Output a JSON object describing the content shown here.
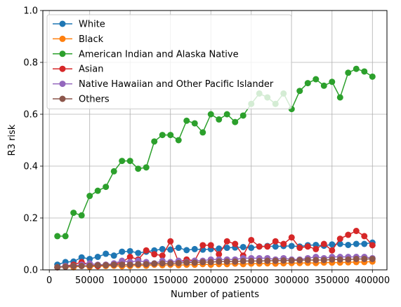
{
  "chart_data": {
    "type": "line",
    "title": "",
    "xlabel": "Number of patients",
    "ylabel": "R3 risk",
    "xlim": [
      -8000,
      418000
    ],
    "ylim": [
      0,
      1.0
    ],
    "xticks": [
      0,
      50000,
      100000,
      150000,
      200000,
      250000,
      300000,
      350000,
      400000
    ],
    "xtick_labels": [
      "0",
      "50000",
      "100000",
      "150000",
      "200000",
      "250000",
      "300000",
      "350000",
      "400000"
    ],
    "yticks": [
      0.0,
      0.2,
      0.4,
      0.6,
      0.8,
      1.0
    ],
    "ytick_labels": [
      "0.0",
      "0.2",
      "0.4",
      "0.6",
      "0.8",
      "1.0"
    ],
    "grid": true,
    "legend_position": "top-left",
    "x": [
      10000,
      20000,
      30000,
      40000,
      50000,
      60000,
      70000,
      80000,
      90000,
      100000,
      110000,
      120000,
      130000,
      140000,
      150000,
      160000,
      170000,
      180000,
      190000,
      200000,
      210000,
      220000,
      230000,
      240000,
      250000,
      260000,
      270000,
      280000,
      290000,
      300000,
      310000,
      320000,
      330000,
      340000,
      350000,
      360000,
      370000,
      380000,
      390000,
      400000
    ],
    "series": [
      {
        "name": "White",
        "color": "#1f77b4",
        "values": [
          0.02,
          0.03,
          0.032,
          0.048,
          0.042,
          0.05,
          0.062,
          0.055,
          0.07,
          0.072,
          0.065,
          0.07,
          0.075,
          0.08,
          0.078,
          0.085,
          0.076,
          0.08,
          0.078,
          0.08,
          0.082,
          0.085,
          0.086,
          0.088,
          0.085,
          0.09,
          0.092,
          0.09,
          0.092,
          0.092,
          0.09,
          0.095,
          0.096,
          0.093,
          0.098,
          0.1,
          0.096,
          0.1,
          0.1,
          0.105
        ]
      },
      {
        "name": "Black",
        "color": "#ff7f0e",
        "values": [
          0.01,
          0.012,
          0.01,
          0.015,
          0.012,
          0.014,
          0.015,
          0.016,
          0.014,
          0.015,
          0.018,
          0.016,
          0.02,
          0.018,
          0.02,
          0.018,
          0.02,
          0.02,
          0.022,
          0.02,
          0.022,
          0.022,
          0.024,
          0.022,
          0.024,
          0.024,
          0.025,
          0.024,
          0.025,
          0.026,
          0.026,
          0.027,
          0.026,
          0.028,
          0.028,
          0.028,
          0.029,
          0.03,
          0.03,
          0.032
        ]
      },
      {
        "name": "American Indian and Alaska Native",
        "color": "#2ca02c",
        "values": [
          0.13,
          0.13,
          0.22,
          0.21,
          0.285,
          0.305,
          0.32,
          0.38,
          0.42,
          0.42,
          0.39,
          0.395,
          0.495,
          0.52,
          0.52,
          0.5,
          0.575,
          0.565,
          0.53,
          0.6,
          0.58,
          0.6,
          0.57,
          0.595,
          0.64,
          0.68,
          0.665,
          0.64,
          0.68,
          0.62,
          0.69,
          0.72,
          0.735,
          0.71,
          0.725,
          0.665,
          0.76,
          0.775,
          0.765,
          0.745
        ]
      },
      {
        "name": "Asian",
        "color": "#d62728",
        "values": [
          0.01,
          0.015,
          0.02,
          0.03,
          0.02,
          0.015,
          0.02,
          0.02,
          0.03,
          0.05,
          0.04,
          0.075,
          0.06,
          0.055,
          0.11,
          0.03,
          0.04,
          0.035,
          0.095,
          0.095,
          0.06,
          0.11,
          0.1,
          0.055,
          0.115,
          0.09,
          0.09,
          0.11,
          0.1,
          0.125,
          0.085,
          0.09,
          0.08,
          0.1,
          0.075,
          0.12,
          0.135,
          0.15,
          0.13,
          0.095
        ]
      },
      {
        "name": "Native Hawaiian and Other Pacific Islander",
        "color": "#9467bd",
        "values": [
          0.01,
          0.015,
          0.015,
          0.02,
          0.025,
          0.02,
          0.02,
          0.025,
          0.035,
          0.03,
          0.035,
          0.03,
          0.025,
          0.035,
          0.03,
          0.035,
          0.03,
          0.035,
          0.035,
          0.04,
          0.04,
          0.04,
          0.04,
          0.045,
          0.045,
          0.045,
          0.045,
          0.04,
          0.045,
          0.04,
          0.04,
          0.045,
          0.05,
          0.045,
          0.05,
          0.05,
          0.05,
          0.05,
          0.05,
          0.045
        ]
      },
      {
        "name": "Others",
        "color": "#8c564b",
        "values": [
          0.01,
          0.012,
          0.015,
          0.015,
          0.016,
          0.018,
          0.018,
          0.02,
          0.02,
          0.02,
          0.022,
          0.022,
          0.024,
          0.025,
          0.025,
          0.026,
          0.028,
          0.028,
          0.03,
          0.03,
          0.032,
          0.032,
          0.032,
          0.034,
          0.034,
          0.034,
          0.035,
          0.035,
          0.036,
          0.036,
          0.037,
          0.038,
          0.038,
          0.038,
          0.04,
          0.04,
          0.04,
          0.042,
          0.042,
          0.042
        ]
      }
    ]
  }
}
